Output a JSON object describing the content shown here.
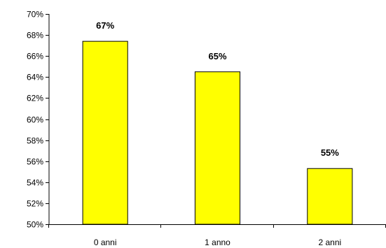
{
  "chart_data": {
    "type": "bar",
    "categories": [
      "0 anni",
      "1 anno",
      "2 anni"
    ],
    "values": [
      67.4,
      64.5,
      55.3
    ],
    "data_labels": [
      "67%",
      "65%",
      "55%"
    ],
    "y_ticks": [
      50,
      52,
      54,
      56,
      58,
      60,
      62,
      64,
      66,
      68,
      70
    ],
    "y_tick_labels": [
      "50%",
      "52%",
      "54%",
      "56%",
      "58%",
      "60%",
      "62%",
      "64%",
      "66%",
      "68%",
      "70%"
    ],
    "ylim": [
      50,
      70
    ],
    "grid": false,
    "legend": "none",
    "colors": {
      "bar_fill": "#ffff00",
      "bar_stroke": "#000000",
      "axis": "#000000"
    }
  }
}
